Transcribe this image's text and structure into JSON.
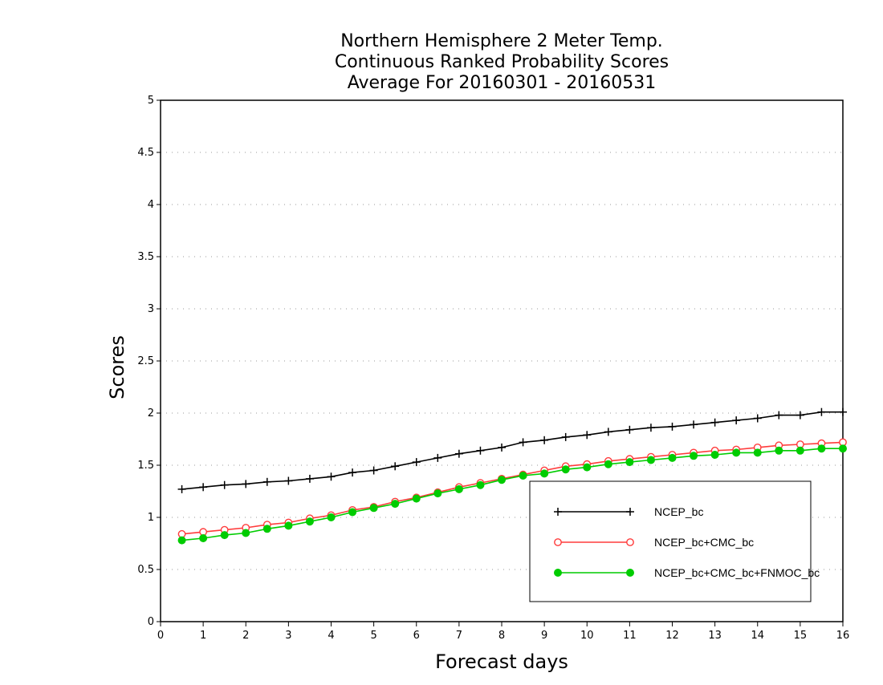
{
  "chart_data": {
    "type": "line",
    "title_lines": [
      "Northern Hemisphere 2 Meter Temp.",
      "Continuous Ranked Probability Scores",
      "Average For 20160301 - 20160531"
    ],
    "xlabel": "Forecast days",
    "ylabel": "Scores",
    "xlim": [
      0,
      16
    ],
    "ylim": [
      0,
      5
    ],
    "xticks": [
      "0",
      "1",
      "2",
      "3",
      "4",
      "5",
      "6",
      "7",
      "8",
      "9",
      "10",
      "11",
      "12",
      "13",
      "14",
      "15",
      "16"
    ],
    "yticks": [
      "0",
      "0.5",
      "1",
      "1.5",
      "2",
      "2.5",
      "3",
      "3.5",
      "4",
      "4.5",
      "5"
    ],
    "grid": "horizontal dotted",
    "legend_position": "bottom-right",
    "x": [
      0.5,
      1,
      1.5,
      2,
      2.5,
      3,
      3.5,
      4,
      4.5,
      5,
      5.5,
      6,
      6.5,
      7,
      7.5,
      8,
      8.5,
      9,
      9.5,
      10,
      10.5,
      11,
      11.5,
      12,
      12.5,
      13,
      13.5,
      14,
      14.5,
      15,
      15.5,
      16
    ],
    "series": [
      {
        "name": "NCEP_bc",
        "color": "#000000",
        "marker": "plus",
        "values": [
          1.27,
          1.29,
          1.31,
          1.32,
          1.34,
          1.35,
          1.37,
          1.39,
          1.43,
          1.45,
          1.49,
          1.53,
          1.57,
          1.61,
          1.64,
          1.67,
          1.72,
          1.74,
          1.77,
          1.79,
          1.82,
          1.84,
          1.86,
          1.87,
          1.89,
          1.91,
          1.93,
          1.95,
          1.98,
          1.98,
          2.01,
          2.01
        ]
      },
      {
        "name": "NCEP_bc+CMC_bc",
        "color": "#ff3b3b",
        "marker": "open-circle",
        "values": [
          0.84,
          0.86,
          0.88,
          0.9,
          0.93,
          0.95,
          0.99,
          1.02,
          1.07,
          1.1,
          1.15,
          1.19,
          1.24,
          1.29,
          1.33,
          1.37,
          1.41,
          1.45,
          1.49,
          1.51,
          1.54,
          1.56,
          1.58,
          1.6,
          1.62,
          1.64,
          1.65,
          1.67,
          1.69,
          1.7,
          1.71,
          1.72
        ]
      },
      {
        "name": "NCEP_bc+CMC_bc+FNMOC_bc",
        "color": "#00cc00",
        "marker": "filled-circle",
        "values": [
          0.78,
          0.8,
          0.83,
          0.85,
          0.89,
          0.92,
          0.96,
          1.0,
          1.05,
          1.09,
          1.13,
          1.18,
          1.23,
          1.27,
          1.31,
          1.36,
          1.4,
          1.42,
          1.46,
          1.48,
          1.51,
          1.53,
          1.55,
          1.57,
          1.59,
          1.6,
          1.62,
          1.62,
          1.64,
          1.64,
          1.66,
          1.66
        ]
      }
    ]
  }
}
